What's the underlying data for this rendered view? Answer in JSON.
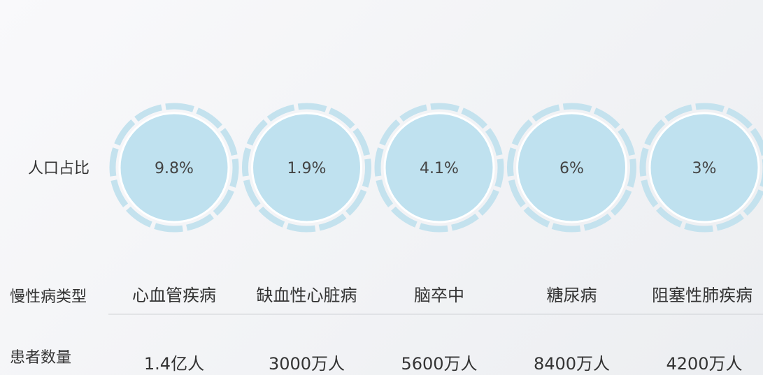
{
  "row_labels": {
    "share": "人口占比",
    "type": "慢性病类型",
    "count": "患者数量"
  },
  "items": [
    {
      "share": "9.8%",
      "type": "心血管疾病",
      "count": "1.4亿人"
    },
    {
      "share": "1.9%",
      "type": "缺血性心脏病",
      "count": "3000万人"
    },
    {
      "share": "4.1%",
      "type": "脑卒中",
      "count": "5600万人"
    },
    {
      "share": "6%",
      "type": "糖尿病",
      "count": "8400万人"
    },
    {
      "share": "3%",
      "type": "阻塞性肺疾病",
      "count": "4200万人"
    }
  ]
}
